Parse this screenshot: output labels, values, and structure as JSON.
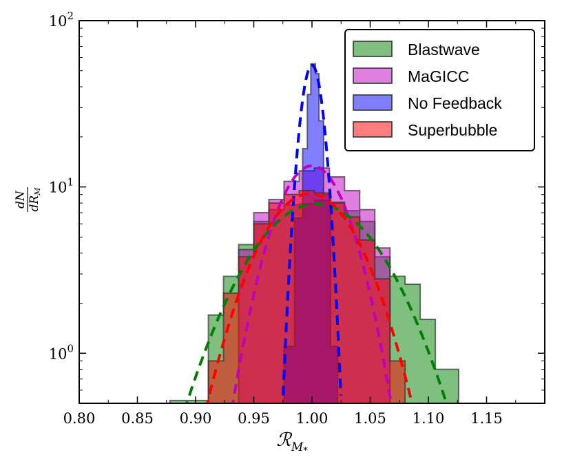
{
  "chart_data": {
    "type": "histogram",
    "xlabel": "ℛ",
    "xlabel_subscript": "M",
    "xlabel_subsubscript": "*",
    "ylabel_num": "dN",
    "ylabel_den_main": "dR",
    "ylabel_den_sub": "M",
    "xlim": [
      0.8,
      1.2
    ],
    "ylim": [
      0.5,
      100
    ],
    "yscale": "log",
    "xticks": [
      0.8,
      0.85,
      0.9,
      0.95,
      1.0,
      1.05,
      1.1,
      1.15
    ],
    "xtick_labels": [
      "0.80",
      "0.85",
      "0.90",
      "0.95",
      "1.00",
      "1.05",
      "1.10",
      "1.15"
    ],
    "yticks": [
      {
        "value": 1,
        "base": "10",
        "exp": "0"
      },
      {
        "value": 10,
        "base": "10",
        "exp": "1"
      },
      {
        "value": 100,
        "base": "10",
        "exp": "2"
      }
    ],
    "legend_position": "top-right",
    "series": [
      {
        "name": "Blastwave",
        "color": "#008000",
        "edges": [
          0.878,
          0.898,
          0.911,
          0.924,
          0.937,
          0.95,
          0.963,
          0.976,
          0.989,
          1.002,
          1.015,
          1.028,
          1.041,
          1.054,
          1.067,
          1.08,
          1.093,
          1.106,
          1.126
        ],
        "counts": [
          0.52,
          0.52,
          1.7,
          2.9,
          4.5,
          6.2,
          7.3,
          7.8,
          7.9,
          8.3,
          8.1,
          7.2,
          6.2,
          3.8,
          2.9,
          2.6,
          1.6,
          0.8
        ],
        "fit": {
          "mu": 1.004,
          "sigma": 0.0475,
          "amp": 7.9
        }
      },
      {
        "name": "MaGICC",
        "color": "#bf00bf",
        "edges": [
          0.937,
          0.95,
          0.963,
          0.976,
          0.989,
          1.002,
          1.015,
          1.028,
          1.041,
          1.054,
          1.067
        ],
        "counts": [
          4.2,
          7.0,
          8.4,
          10.8,
          12.5,
          13.0,
          11.5,
          9.5,
          7.3,
          4.3
        ],
        "fit": {
          "mu": 1.0,
          "sigma": 0.0265,
          "amp": 13.4
        }
      },
      {
        "name": "No Feedback",
        "color": "#0000ff",
        "edges": [
          0.976,
          0.985,
          0.992,
          0.996,
          0.999,
          1.003,
          1.006,
          1.01,
          1.016,
          1.022
        ],
        "counts": [
          1.1,
          6.5,
          17.0,
          36.0,
          55.0,
          48.0,
          25.0,
          9.0,
          1.1
        ],
        "fit": {
          "mu": 1.0,
          "sigma": 0.0082,
          "amp": 54.0
        }
      },
      {
        "name": "Superbubble",
        "color": "#ff0000",
        "edges": [
          0.911,
          0.924,
          0.937,
          0.95,
          0.963,
          0.976,
          0.989,
          1.002,
          1.015,
          1.028,
          1.041,
          1.054,
          1.067,
          1.08
        ],
        "counts": [
          0.9,
          2.3,
          3.8,
          6.0,
          8.0,
          9.0,
          9.5,
          9.2,
          8.0,
          6.6,
          4.8,
          2.8,
          0.9
        ],
        "fit": {
          "mu": 0.998,
          "sigma": 0.0365,
          "amp": 9.1
        }
      }
    ]
  }
}
